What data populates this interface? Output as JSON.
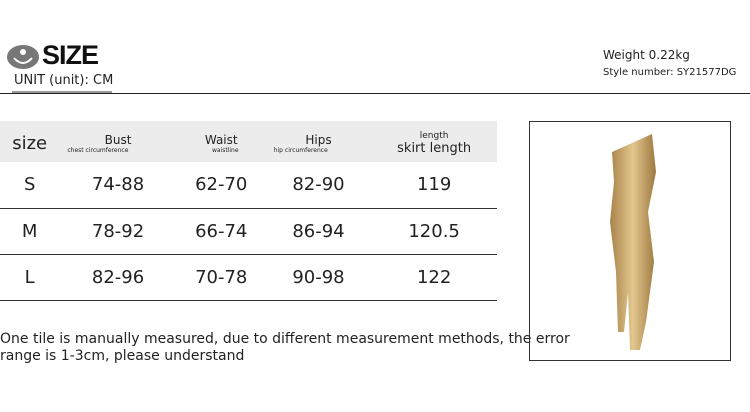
{
  "header": {
    "title": "SIZE",
    "unit": "UNIT (unit): CM",
    "weight": "Weight 0.22kg",
    "style_number": "Style number: SY21577DG"
  },
  "table": {
    "columns": [
      {
        "label": "size",
        "sub": ""
      },
      {
        "label": "Bust",
        "sub": "chest circumference"
      },
      {
        "label": "Waist",
        "sub": "waistline"
      },
      {
        "label": "Hips",
        "sub": "hip circumference"
      },
      {
        "label": "length",
        "sub": "skirt length"
      }
    ],
    "rows": [
      [
        "S",
        "74-88",
        "62-70",
        "82-90",
        "119"
      ],
      [
        "M",
        "78-92",
        "66-74",
        "86-94",
        "120.5"
      ],
      [
        "L",
        "82-96",
        "70-78",
        "90-98",
        "122"
      ]
    ]
  },
  "note": "One tile is manually measured, due to different measurement methods, the error range is 1-3cm, please understand",
  "colors": {
    "dress": "#c9a463",
    "header_bg": "#ececec"
  }
}
